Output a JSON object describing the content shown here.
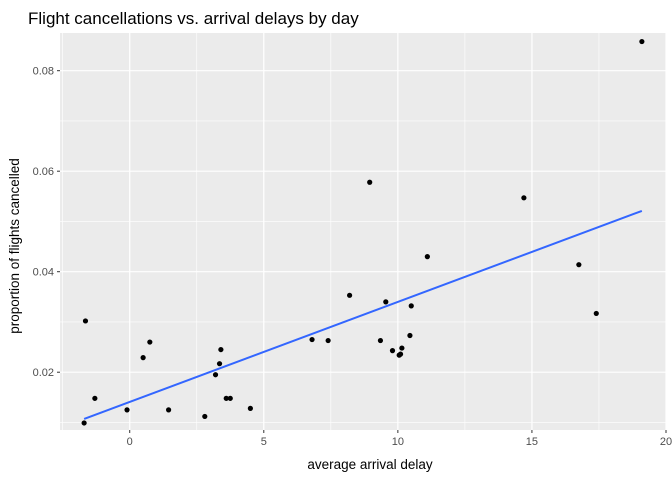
{
  "chart_data": {
    "type": "scatter",
    "title": "Flight cancellations vs. arrival delays by day",
    "xlabel": "average arrival delay",
    "ylabel": "proportion of flights cancelled",
    "xlim": [
      -2.6,
      20.0
    ],
    "ylim": [
      0.0085,
      0.0875
    ],
    "x_ticks": [
      0,
      5,
      10,
      15,
      20
    ],
    "x_tick_labels": [
      "0",
      "5",
      "10",
      "15",
      "20"
    ],
    "y_ticks": [
      0.02,
      0.04,
      0.06,
      0.08
    ],
    "y_tick_labels": [
      "0.02",
      "0.04",
      "0.06",
      "0.08"
    ],
    "grid": true,
    "legend": "none",
    "colors": {
      "panel": "#ebebeb",
      "grid": "#ffffff",
      "points": "#000000",
      "trend": "#3366ff"
    },
    "points": [
      {
        "x": -1.7,
        "y": 0.0099
      },
      {
        "x": -1.65,
        "y": 0.0302
      },
      {
        "x": -1.3,
        "y": 0.0148
      },
      {
        "x": -0.1,
        "y": 0.0125
      },
      {
        "x": 0.5,
        "y": 0.0229
      },
      {
        "x": 0.75,
        "y": 0.026
      },
      {
        "x": 1.45,
        "y": 0.0125
      },
      {
        "x": 2.8,
        "y": 0.0112
      },
      {
        "x": 3.2,
        "y": 0.0195
      },
      {
        "x": 3.35,
        "y": 0.0217
      },
      {
        "x": 3.4,
        "y": 0.0245
      },
      {
        "x": 3.6,
        "y": 0.0148
      },
      {
        "x": 3.75,
        "y": 0.0148
      },
      {
        "x": 4.5,
        "y": 0.0128
      },
      {
        "x": 6.8,
        "y": 0.0265
      },
      {
        "x": 7.4,
        "y": 0.0263
      },
      {
        "x": 8.2,
        "y": 0.0353
      },
      {
        "x": 8.95,
        "y": 0.0578
      },
      {
        "x": 9.35,
        "y": 0.0263
      },
      {
        "x": 9.55,
        "y": 0.034
      },
      {
        "x": 9.8,
        "y": 0.0243
      },
      {
        "x": 10.05,
        "y": 0.0234
      },
      {
        "x": 10.1,
        "y": 0.0236
      },
      {
        "x": 10.15,
        "y": 0.0248
      },
      {
        "x": 10.45,
        "y": 0.0273
      },
      {
        "x": 10.5,
        "y": 0.0332
      },
      {
        "x": 11.1,
        "y": 0.043
      },
      {
        "x": 14.7,
        "y": 0.0547
      },
      {
        "x": 16.75,
        "y": 0.0414
      },
      {
        "x": 17.4,
        "y": 0.0317
      },
      {
        "x": 19.1,
        "y": 0.0858
      }
    ],
    "trend_line": {
      "type": "linear",
      "x": [
        -1.7,
        19.1
      ],
      "y": [
        0.0107,
        0.0521
      ]
    }
  }
}
